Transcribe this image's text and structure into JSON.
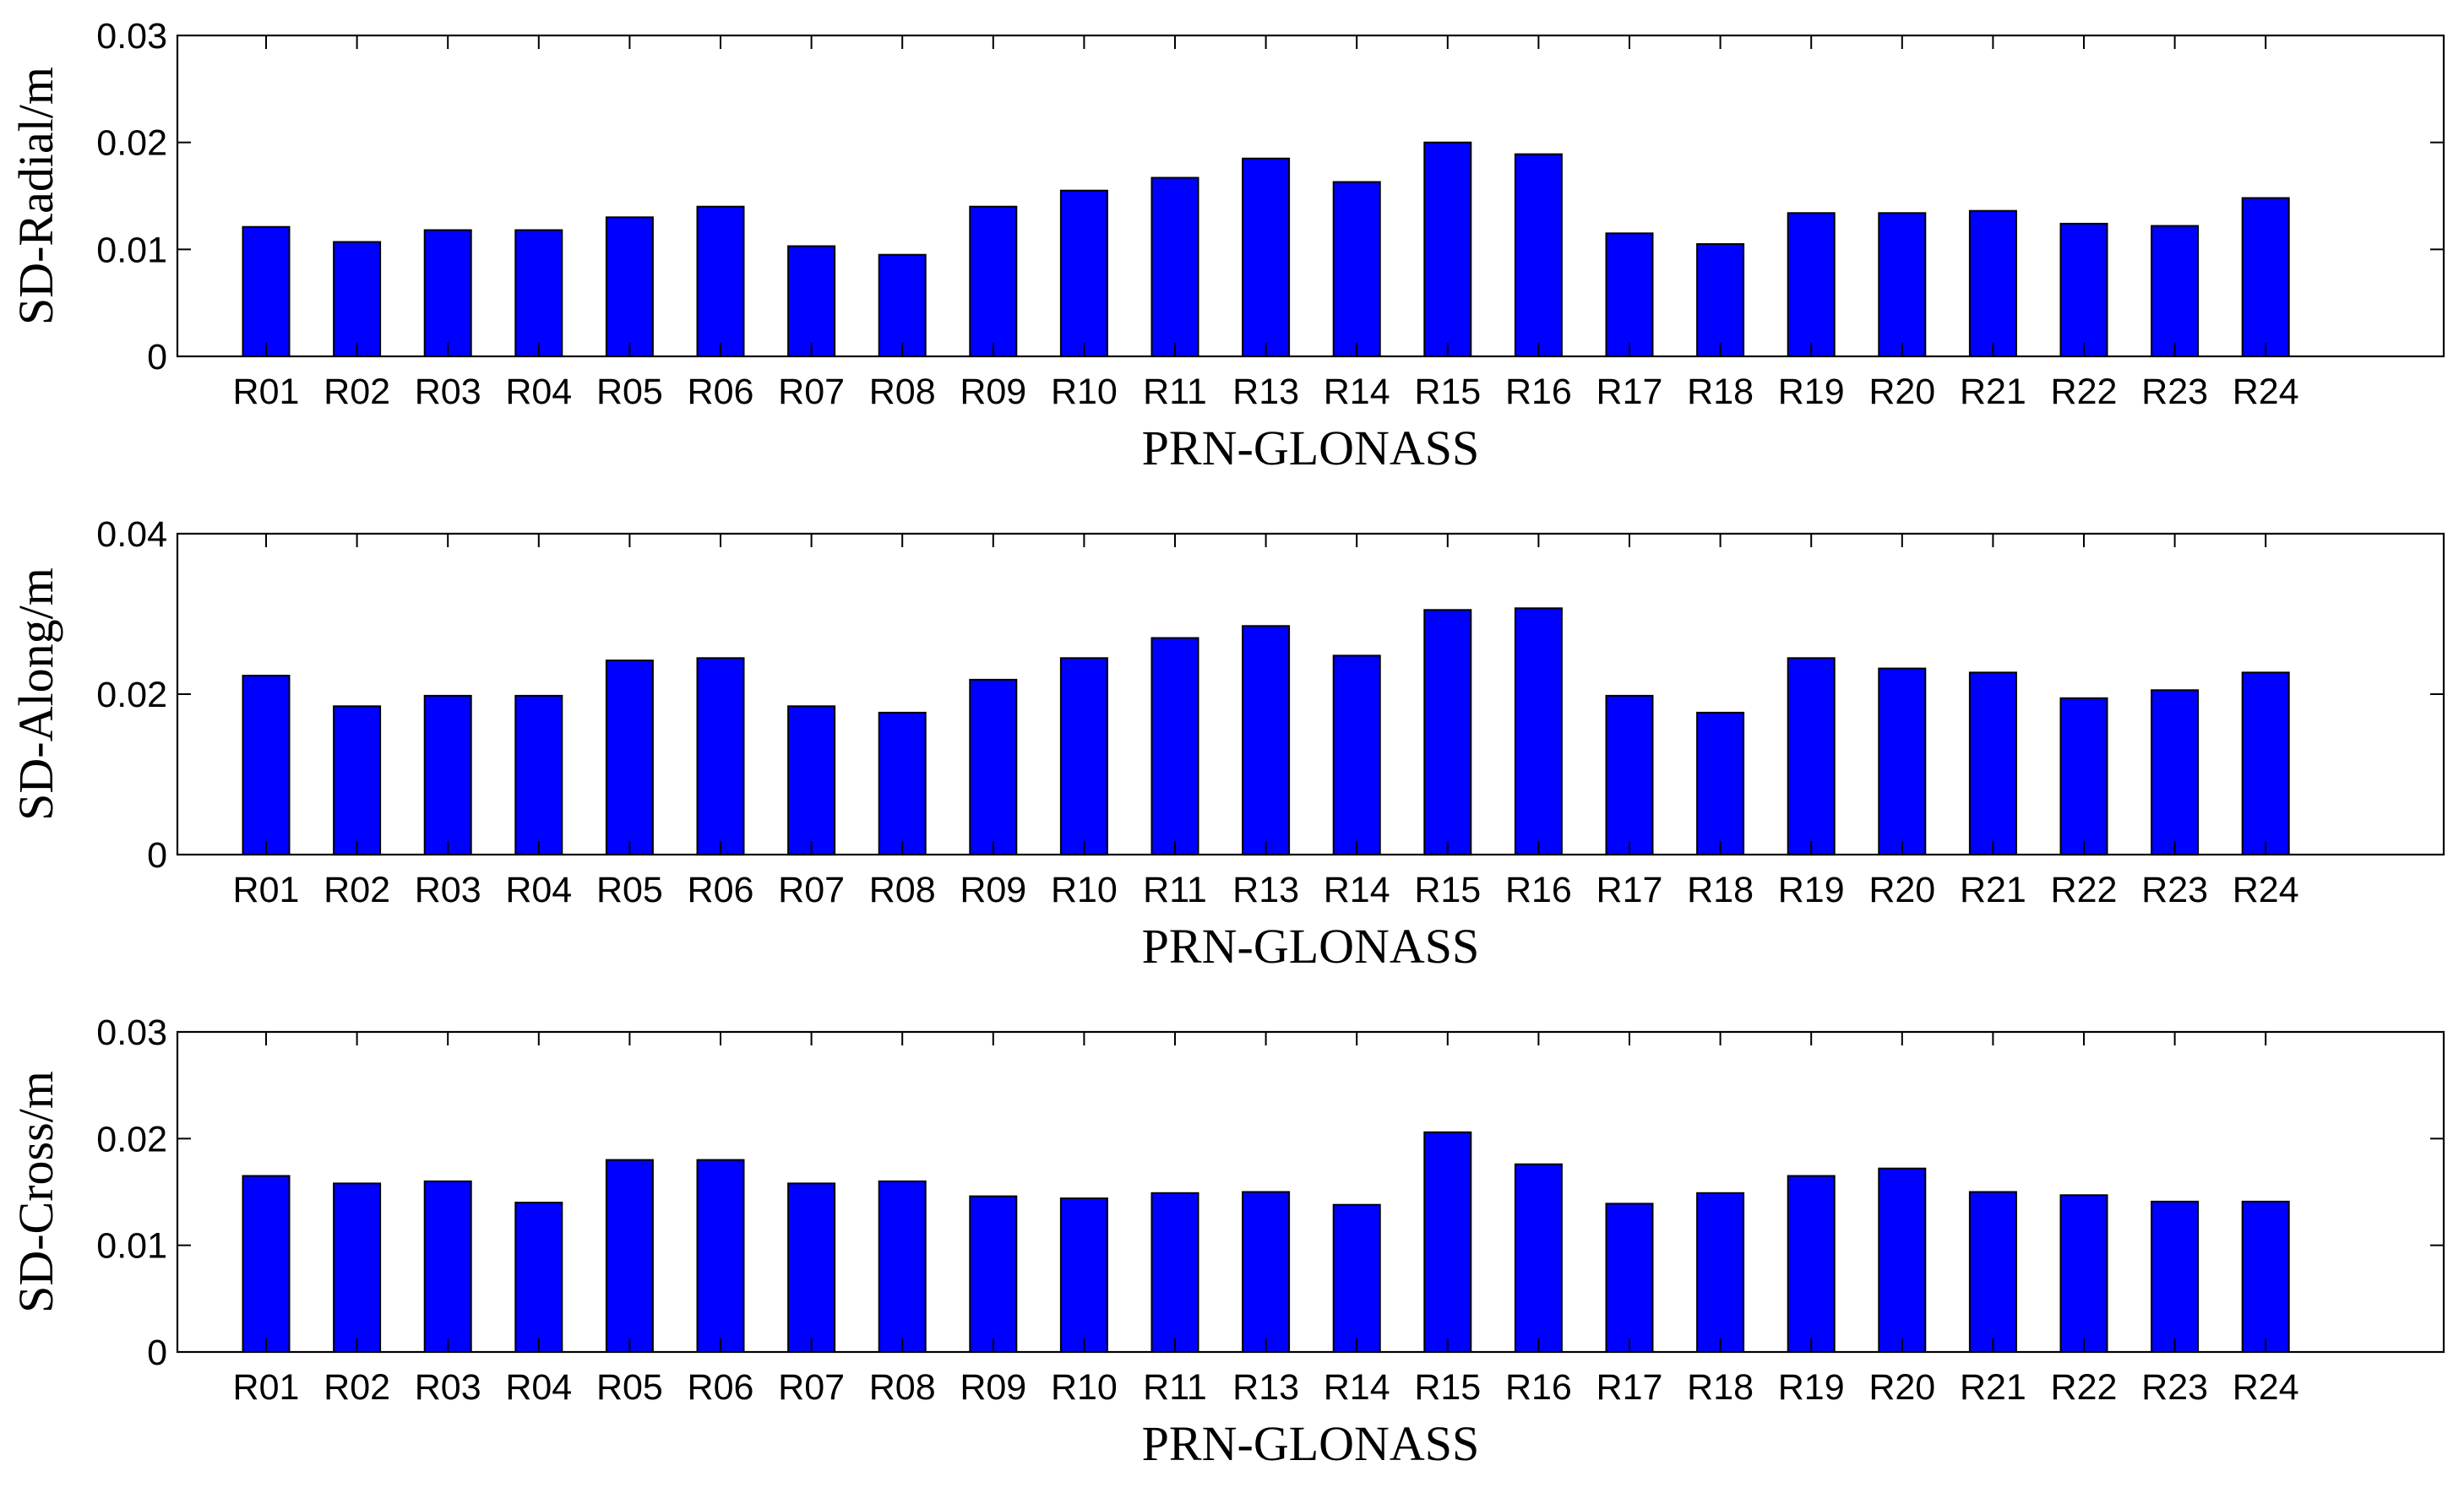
{
  "colors": {
    "bar_fill": "#0000ff",
    "axis": "#000000",
    "background": "#ffffff"
  },
  "chart_data": [
    {
      "type": "bar",
      "xlabel": "PRN-GLONASS",
      "ylabel": "SD-Radial/m",
      "ylim": [
        0,
        0.03
      ],
      "yticks": [
        "0",
        "0.01",
        "0.02",
        "0.03"
      ],
      "grid": false,
      "categories": [
        "R01",
        "R02",
        "R03",
        "R04",
        "R05",
        "R06",
        "R07",
        "R08",
        "R09",
        "R10",
        "R11",
        "R13",
        "R14",
        "R15",
        "R16",
        "R17",
        "R18",
        "R19",
        "R20",
        "R21",
        "R22",
        "R23",
        "R24"
      ],
      "values": [
        0.0121,
        0.0107,
        0.0118,
        0.0118,
        0.013,
        0.014,
        0.0103,
        0.0095,
        0.014,
        0.0155,
        0.0167,
        0.0185,
        0.0163,
        0.02,
        0.0189,
        0.0115,
        0.0105,
        0.0134,
        0.0134,
        0.0136,
        0.0124,
        0.0122,
        0.0148
      ]
    },
    {
      "type": "bar",
      "xlabel": "PRN-GLONASS",
      "ylabel": "SD-Along/m",
      "ylim": [
        0,
        0.04
      ],
      "yticks": [
        "0",
        "0.02",
        "0.04"
      ],
      "grid": false,
      "categories": [
        "R01",
        "R02",
        "R03",
        "R04",
        "R05",
        "R06",
        "R07",
        "R08",
        "R09",
        "R10",
        "R11",
        "R13",
        "R14",
        "R15",
        "R16",
        "R17",
        "R18",
        "R19",
        "R20",
        "R21",
        "R22",
        "R23",
        "R24"
      ],
      "values": [
        0.0223,
        0.0185,
        0.0198,
        0.0198,
        0.0242,
        0.0245,
        0.0185,
        0.0177,
        0.0218,
        0.0245,
        0.027,
        0.0285,
        0.0248,
        0.0305,
        0.0307,
        0.0198,
        0.0177,
        0.0245,
        0.0232,
        0.0227,
        0.0195,
        0.0205,
        0.0227
      ]
    },
    {
      "type": "bar",
      "xlabel": "PRN-GLONASS",
      "ylabel": "SD-Cross/m",
      "ylim": [
        0,
        0.03
      ],
      "yticks": [
        "0",
        "0.01",
        "0.02",
        "0.03"
      ],
      "grid": false,
      "categories": [
        "R01",
        "R02",
        "R03",
        "R04",
        "R05",
        "R06",
        "R07",
        "R08",
        "R09",
        "R10",
        "R11",
        "R13",
        "R14",
        "R15",
        "R16",
        "R17",
        "R18",
        "R19",
        "R20",
        "R21",
        "R22",
        "R23",
        "R24"
      ],
      "values": [
        0.0165,
        0.0158,
        0.016,
        0.014,
        0.018,
        0.018,
        0.0158,
        0.016,
        0.0146,
        0.0144,
        0.0149,
        0.015,
        0.0138,
        0.0206,
        0.0176,
        0.0139,
        0.0149,
        0.0165,
        0.0172,
        0.015,
        0.0147,
        0.0141,
        0.0141
      ]
    }
  ]
}
